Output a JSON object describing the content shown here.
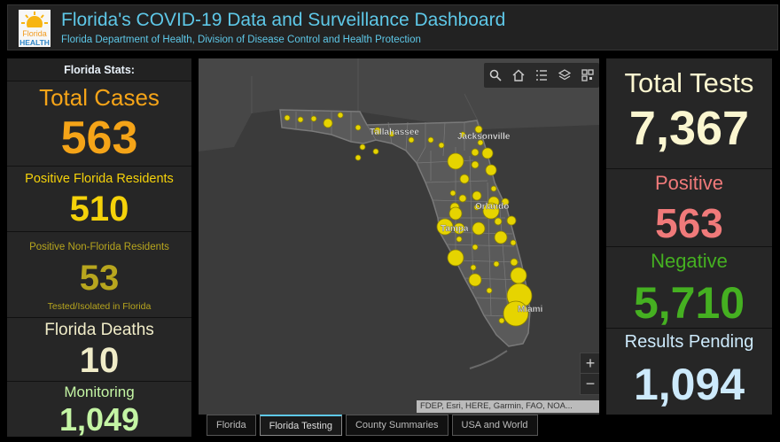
{
  "header": {
    "title": "Florida's COVID-19 Data and Surveillance Dashboard",
    "subtitle": "Florida Department of Health, Division of Disease Control and Health Protection",
    "logo_text_top": "Florida",
    "logo_text_bottom": "HEALTH"
  },
  "left_panel": {
    "heading": "Florida Stats:",
    "total_cases": {
      "label": "Total Cases",
      "value": "563"
    },
    "positive_residents": {
      "label": "Positive Florida Residents",
      "value": "510"
    },
    "positive_non_residents": {
      "label": "Positive Non-Florida Residents",
      "value": "53",
      "note": "Tested/Isolated in Florida"
    },
    "deaths": {
      "label": "Florida Deaths",
      "value": "10"
    },
    "monitoring": {
      "label": "Monitoring",
      "value": "1,049"
    }
  },
  "right_panel": {
    "total_tests": {
      "label": "Total Tests",
      "value": "7,367"
    },
    "positive": {
      "label": "Positive",
      "value": "563"
    },
    "negative": {
      "label": "Negative",
      "value": "5,710"
    },
    "pending": {
      "label": "Results Pending",
      "value": "1,094"
    }
  },
  "map": {
    "city_labels": [
      "Tallahassee",
      "Jacksonville",
      "Orlando",
      "Tampa",
      "Miami"
    ],
    "attribution": "FDEP, Esri, HERE, Garmin, FAO, NOA...",
    "zoom_in": "+",
    "zoom_out": "−",
    "toolbar_icons": [
      "search-icon",
      "home-icon",
      "legend-icon",
      "layers-icon",
      "qr-code-icon"
    ]
  },
  "tabs": [
    "Florida",
    "Florida Testing",
    "County Summaries",
    "USA and World"
  ],
  "active_tab": "Florida Testing",
  "colors": {
    "accent_title": "#5ec8e8",
    "total_cases": "#f5a418",
    "positive_residents": "#f5d20a",
    "non_residents": "#b8a61e",
    "deaths": "#f0ecc8",
    "monitoring": "#c4f5a4",
    "positive": "#f07a7a",
    "negative": "#45b021",
    "pending": "#cdeafc",
    "bubble": "#e6d400"
  }
}
